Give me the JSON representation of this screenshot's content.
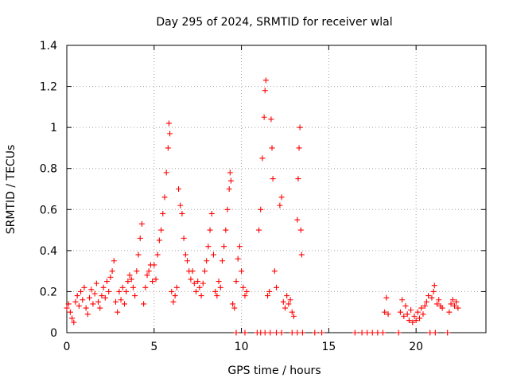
{
  "chart_data": {
    "type": "scatter",
    "title": "Day 295 of 2024, SRMTID for receiver wlal",
    "xlabel": "GPS time / hours",
    "ylabel": "SRMTID / TECUs",
    "xlim": [
      0,
      24
    ],
    "ylim": [
      0,
      1.4
    ],
    "xticks": [
      0,
      5,
      10,
      15,
      20
    ],
    "xtick_labels": [
      "0",
      "5",
      "10",
      "15",
      "20"
    ],
    "yticks": [
      0,
      0.2,
      0.4,
      0.6,
      0.8,
      1.0,
      1.2,
      1.4
    ],
    "ytick_labels": [
      "0",
      "0.2",
      "0.4",
      "0.6",
      "0.8",
      "1",
      "1.2",
      "1.4"
    ],
    "grid": true,
    "marker": "+",
    "marker_color": "#ff0000",
    "series": [
      {
        "name": "SRMTID",
        "points": [
          [
            0.0,
            0.12
          ],
          [
            0.1,
            0.14
          ],
          [
            0.2,
            0.1
          ],
          [
            0.3,
            0.07
          ],
          [
            0.4,
            0.05
          ],
          [
            0.5,
            0.15
          ],
          [
            0.6,
            0.18
          ],
          [
            0.7,
            0.13
          ],
          [
            0.8,
            0.2
          ],
          [
            0.9,
            0.16
          ],
          [
            1.0,
            0.22
          ],
          [
            1.1,
            0.12
          ],
          [
            1.2,
            0.09
          ],
          [
            1.3,
            0.17
          ],
          [
            1.4,
            0.21
          ],
          [
            1.5,
            0.14
          ],
          [
            1.6,
            0.19
          ],
          [
            1.7,
            0.24
          ],
          [
            1.8,
            0.15
          ],
          [
            1.9,
            0.12
          ],
          [
            2.0,
            0.18
          ],
          [
            2.1,
            0.22
          ],
          [
            2.2,
            0.17
          ],
          [
            2.3,
            0.25
          ],
          [
            2.4,
            0.2
          ],
          [
            2.5,
            0.27
          ],
          [
            2.6,
            0.3
          ],
          [
            2.7,
            0.35
          ],
          [
            2.8,
            0.15
          ],
          [
            2.9,
            0.1
          ],
          [
            3.0,
            0.2
          ],
          [
            3.1,
            0.16
          ],
          [
            3.2,
            0.22
          ],
          [
            3.3,
            0.14
          ],
          [
            3.4,
            0.2
          ],
          [
            3.5,
            0.25
          ],
          [
            3.6,
            0.28
          ],
          [
            3.7,
            0.26
          ],
          [
            3.8,
            0.22
          ],
          [
            3.9,
            0.18
          ],
          [
            4.0,
            0.3
          ],
          [
            4.1,
            0.38
          ],
          [
            4.2,
            0.46
          ],
          [
            4.3,
            0.53
          ],
          [
            4.4,
            0.14
          ],
          [
            4.5,
            0.22
          ],
          [
            4.6,
            0.28
          ],
          [
            4.7,
            0.3
          ],
          [
            4.8,
            0.33
          ],
          [
            4.9,
            0.25
          ],
          [
            5.0,
            0.33
          ],
          [
            5.1,
            0.26
          ],
          [
            5.2,
            0.38
          ],
          [
            5.3,
            0.45
          ],
          [
            5.4,
            0.5
          ],
          [
            5.5,
            0.58
          ],
          [
            5.6,
            0.66
          ],
          [
            5.7,
            0.78
          ],
          [
            5.8,
            0.9
          ],
          [
            5.85,
            1.02
          ],
          [
            5.9,
            0.97
          ],
          [
            6.0,
            0.2
          ],
          [
            6.1,
            0.15
          ],
          [
            6.2,
            0.18
          ],
          [
            6.3,
            0.22
          ],
          [
            6.4,
            0.7
          ],
          [
            6.5,
            0.62
          ],
          [
            6.6,
            0.58
          ],
          [
            6.7,
            0.46
          ],
          [
            6.8,
            0.38
          ],
          [
            6.9,
            0.35
          ],
          [
            7.0,
            0.3
          ],
          [
            7.1,
            0.26
          ],
          [
            7.2,
            0.3
          ],
          [
            7.3,
            0.24
          ],
          [
            7.4,
            0.2
          ],
          [
            7.5,
            0.25
          ],
          [
            7.6,
            0.22
          ],
          [
            7.7,
            0.18
          ],
          [
            7.8,
            0.24
          ],
          [
            7.9,
            0.3
          ],
          [
            8.0,
            0.35
          ],
          [
            8.1,
            0.42
          ],
          [
            8.2,
            0.5
          ],
          [
            8.3,
            0.58
          ],
          [
            8.4,
            0.38
          ],
          [
            8.5,
            0.2
          ],
          [
            8.6,
            0.18
          ],
          [
            8.7,
            0.25
          ],
          [
            8.8,
            0.22
          ],
          [
            8.9,
            0.35
          ],
          [
            9.0,
            0.42
          ],
          [
            9.1,
            0.5
          ],
          [
            9.2,
            0.6
          ],
          [
            9.3,
            0.7
          ],
          [
            9.35,
            0.78
          ],
          [
            9.4,
            0.74
          ],
          [
            9.5,
            0.14
          ],
          [
            9.6,
            0.12
          ],
          [
            9.7,
            0.25
          ],
          [
            9.8,
            0.36
          ],
          [
            9.9,
            0.42
          ],
          [
            10.0,
            0.3
          ],
          [
            10.1,
            0.22
          ],
          [
            10.2,
            0.18
          ],
          [
            10.3,
            0.2
          ],
          [
            11.0,
            0.5
          ],
          [
            11.1,
            0.6
          ],
          [
            11.2,
            0.85
          ],
          [
            11.3,
            1.05
          ],
          [
            11.35,
            1.18
          ],
          [
            11.4,
            1.23
          ],
          [
            11.5,
            0.18
          ],
          [
            11.6,
            0.2
          ],
          [
            11.7,
            1.04
          ],
          [
            11.75,
            0.9
          ],
          [
            11.8,
            0.75
          ],
          [
            11.9,
            0.3
          ],
          [
            12.0,
            0.22
          ],
          [
            12.2,
            0.62
          ],
          [
            12.3,
            0.66
          ],
          [
            12.4,
            0.15
          ],
          [
            12.5,
            0.12
          ],
          [
            12.6,
            0.18
          ],
          [
            12.7,
            0.14
          ],
          [
            12.8,
            0.16
          ],
          [
            12.9,
            0.1
          ],
          [
            13.0,
            0.08
          ],
          [
            13.2,
            0.55
          ],
          [
            13.25,
            0.75
          ],
          [
            13.3,
            0.9
          ],
          [
            13.35,
            1.0
          ],
          [
            13.4,
            0.5
          ],
          [
            13.45,
            0.38
          ],
          [
            9.7,
            0.0
          ],
          [
            10.2,
            0.0
          ],
          [
            10.9,
            0.0
          ],
          [
            11.1,
            0.0
          ],
          [
            11.35,
            0.0
          ],
          [
            11.65,
            0.0
          ],
          [
            12.0,
            0.0
          ],
          [
            12.3,
            0.0
          ],
          [
            12.9,
            0.0
          ],
          [
            13.2,
            0.0
          ],
          [
            13.5,
            0.0
          ],
          [
            14.2,
            0.0
          ],
          [
            14.6,
            0.0
          ],
          [
            16.5,
            0.0
          ],
          [
            16.9,
            0.0
          ],
          [
            17.2,
            0.0
          ],
          [
            17.5,
            0.0
          ],
          [
            17.8,
            0.0
          ],
          [
            18.1,
            0.0
          ],
          [
            18.2,
            0.1
          ],
          [
            18.3,
            0.17
          ],
          [
            18.4,
            0.09
          ],
          [
            19.0,
            0.0
          ],
          [
            19.1,
            0.1
          ],
          [
            19.2,
            0.16
          ],
          [
            19.3,
            0.08
          ],
          [
            19.4,
            0.13
          ],
          [
            19.5,
            0.09
          ],
          [
            19.6,
            0.06
          ],
          [
            19.7,
            0.11
          ],
          [
            19.8,
            0.05
          ],
          [
            19.9,
            0.08
          ],
          [
            20.0,
            0.06
          ],
          [
            20.1,
            0.1
          ],
          [
            20.2,
            0.07
          ],
          [
            20.3,
            0.12
          ],
          [
            20.4,
            0.09
          ],
          [
            20.5,
            0.13
          ],
          [
            20.6,
            0.15
          ],
          [
            20.7,
            0.18
          ],
          [
            20.8,
            0.0
          ],
          [
            20.9,
            0.17
          ],
          [
            21.0,
            0.2
          ],
          [
            21.05,
            0.23
          ],
          [
            21.1,
            0.0
          ],
          [
            21.2,
            0.14
          ],
          [
            21.3,
            0.16
          ],
          [
            21.4,
            0.13
          ],
          [
            21.5,
            0.12
          ],
          [
            21.8,
            0.0
          ],
          [
            21.9,
            0.1
          ],
          [
            22.0,
            0.14
          ],
          [
            22.1,
            0.16
          ],
          [
            22.2,
            0.13
          ],
          [
            22.3,
            0.15
          ],
          [
            22.4,
            0.12
          ]
        ]
      }
    ]
  }
}
